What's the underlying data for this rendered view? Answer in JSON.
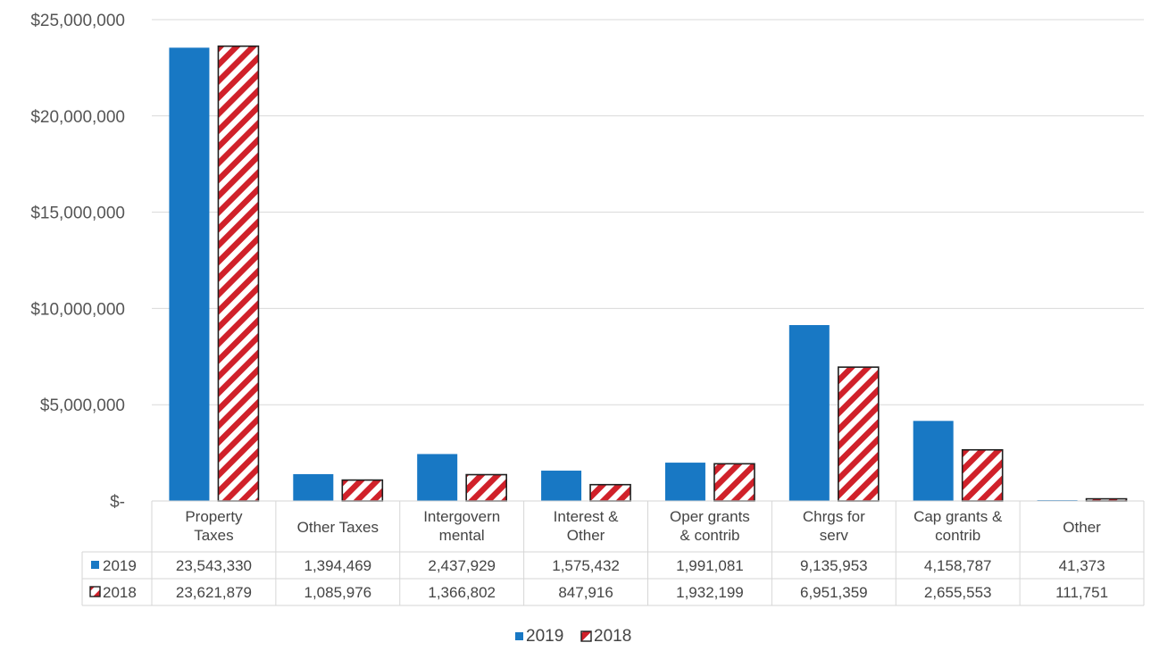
{
  "chart_data": {
    "type": "bar",
    "categories": [
      [
        "Property",
        "Taxes"
      ],
      [
        "Other Taxes"
      ],
      [
        "Intergovern",
        "mental"
      ],
      [
        "Interest &",
        "Other"
      ],
      [
        "Oper grants",
        "& contrib"
      ],
      [
        "Chrgs for",
        "serv"
      ],
      [
        "Cap grants &",
        "contrib"
      ],
      [
        "Other"
      ]
    ],
    "series": [
      {
        "name": "2019",
        "color": "#1878c4",
        "values": [
          23543330,
          1394469,
          2437929,
          1575432,
          1991081,
          9135953,
          4158787,
          41373
        ],
        "labels": [
          "23,543,330",
          "1,394,469",
          "2,437,929",
          "1,575,432",
          "1,991,081",
          "9,135,953",
          "4,158,787",
          "41,373"
        ]
      },
      {
        "name": "2018",
        "color": "#d0212a",
        "pattern": "diagonal-hatch",
        "values": [
          23621879,
          1085976,
          1366802,
          847916,
          1932199,
          6951359,
          2655553,
          111751
        ],
        "labels": [
          "23,621,879",
          "1,085,976",
          "1,366,802",
          "847,916",
          "1,932,199",
          "6,951,359",
          "2,655,553",
          "111,751"
        ]
      }
    ],
    "yticks": [
      "$-",
      "$5,000,000",
      "$10,000,000",
      "$15,000,000",
      "$20,000,000",
      "$25,000,000"
    ],
    "ylim": [
      0,
      25000000
    ],
    "grid": true,
    "legend": "bottom",
    "data_table": true
  }
}
